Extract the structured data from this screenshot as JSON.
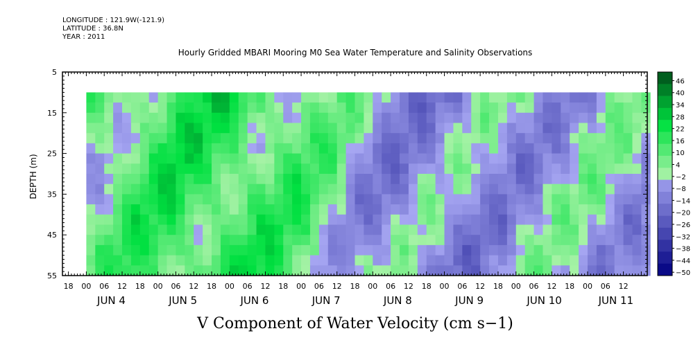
{
  "header": {
    "longitude": "LONGITUDE : 121.9W(-121.9)",
    "latitude": "LATITUDE : 36.8N",
    "year": "YEAR : 2011"
  },
  "chart_data": {
    "type": "heatmap",
    "title": "Hourly Gridded MBARI Mooring M0 Sea Water Temperature and Salinity Observations",
    "xlabel": "",
    "ylabel": "DEPTH (m)",
    "colorbar_label": "V Component of Water Velocity (cm s−1)",
    "ylim": [
      5,
      55
    ],
    "y_reversed": true,
    "y_ticks": [
      5,
      15,
      25,
      35,
      45,
      55
    ],
    "data_depth_range": [
      10,
      55
    ],
    "x_range_hours": [
      "2011-06-03T16:00",
      "2011-06-11T20:00"
    ],
    "data_start": "2011-06-04T00:00",
    "x_hour_ticks": [
      "18",
      "00",
      "06",
      "12",
      "18",
      "00",
      "06",
      "12",
      "18",
      "00",
      "06",
      "12",
      "18",
      "00",
      "06",
      "12",
      "18",
      "00",
      "06",
      "12",
      "18",
      "00",
      "06",
      "12",
      "18",
      "00",
      "06",
      "12",
      "18",
      "00",
      "06",
      "12"
    ],
    "x_day_labels": [
      "JUN  4",
      "JUN  5",
      "JUN  6",
      "JUN  7",
      "JUN  8",
      "JUN  9",
      "JUN 10",
      "JUN 11"
    ],
    "colorbar_levels": [
      "46",
      "40",
      "34",
      "28",
      "22",
      "16",
      "10",
      "4",
      "−2",
      "−8",
      "−14",
      "−20",
      "−26",
      "−32",
      "−38",
      "−44",
      "−50"
    ],
    "colorbar_range": [
      -50,
      52
    ],
    "day_profiles": [
      {
        "day": "JUN 4",
        "v_mean": 6
      },
      {
        "day": "JUN 5",
        "v_mean": 16
      },
      {
        "day": "JUN 6",
        "v_mean": 18
      },
      {
        "day": "JUN 7",
        "v_mean": 10
      },
      {
        "day": "JUN 8",
        "v_mean": -6
      },
      {
        "day": "JUN 9",
        "v_mean": -8
      },
      {
        "day": "JUN 10",
        "v_mean": -4
      },
      {
        "day": "JUN 11",
        "v_mean": -2
      }
    ],
    "colors": {
      "neg_light": "#a6a6f2",
      "neg_dark": "#000080",
      "pos_light": "#a6f2a6",
      "pos_mid": "#00e040",
      "pos_dark": "#004d1a"
    }
  }
}
